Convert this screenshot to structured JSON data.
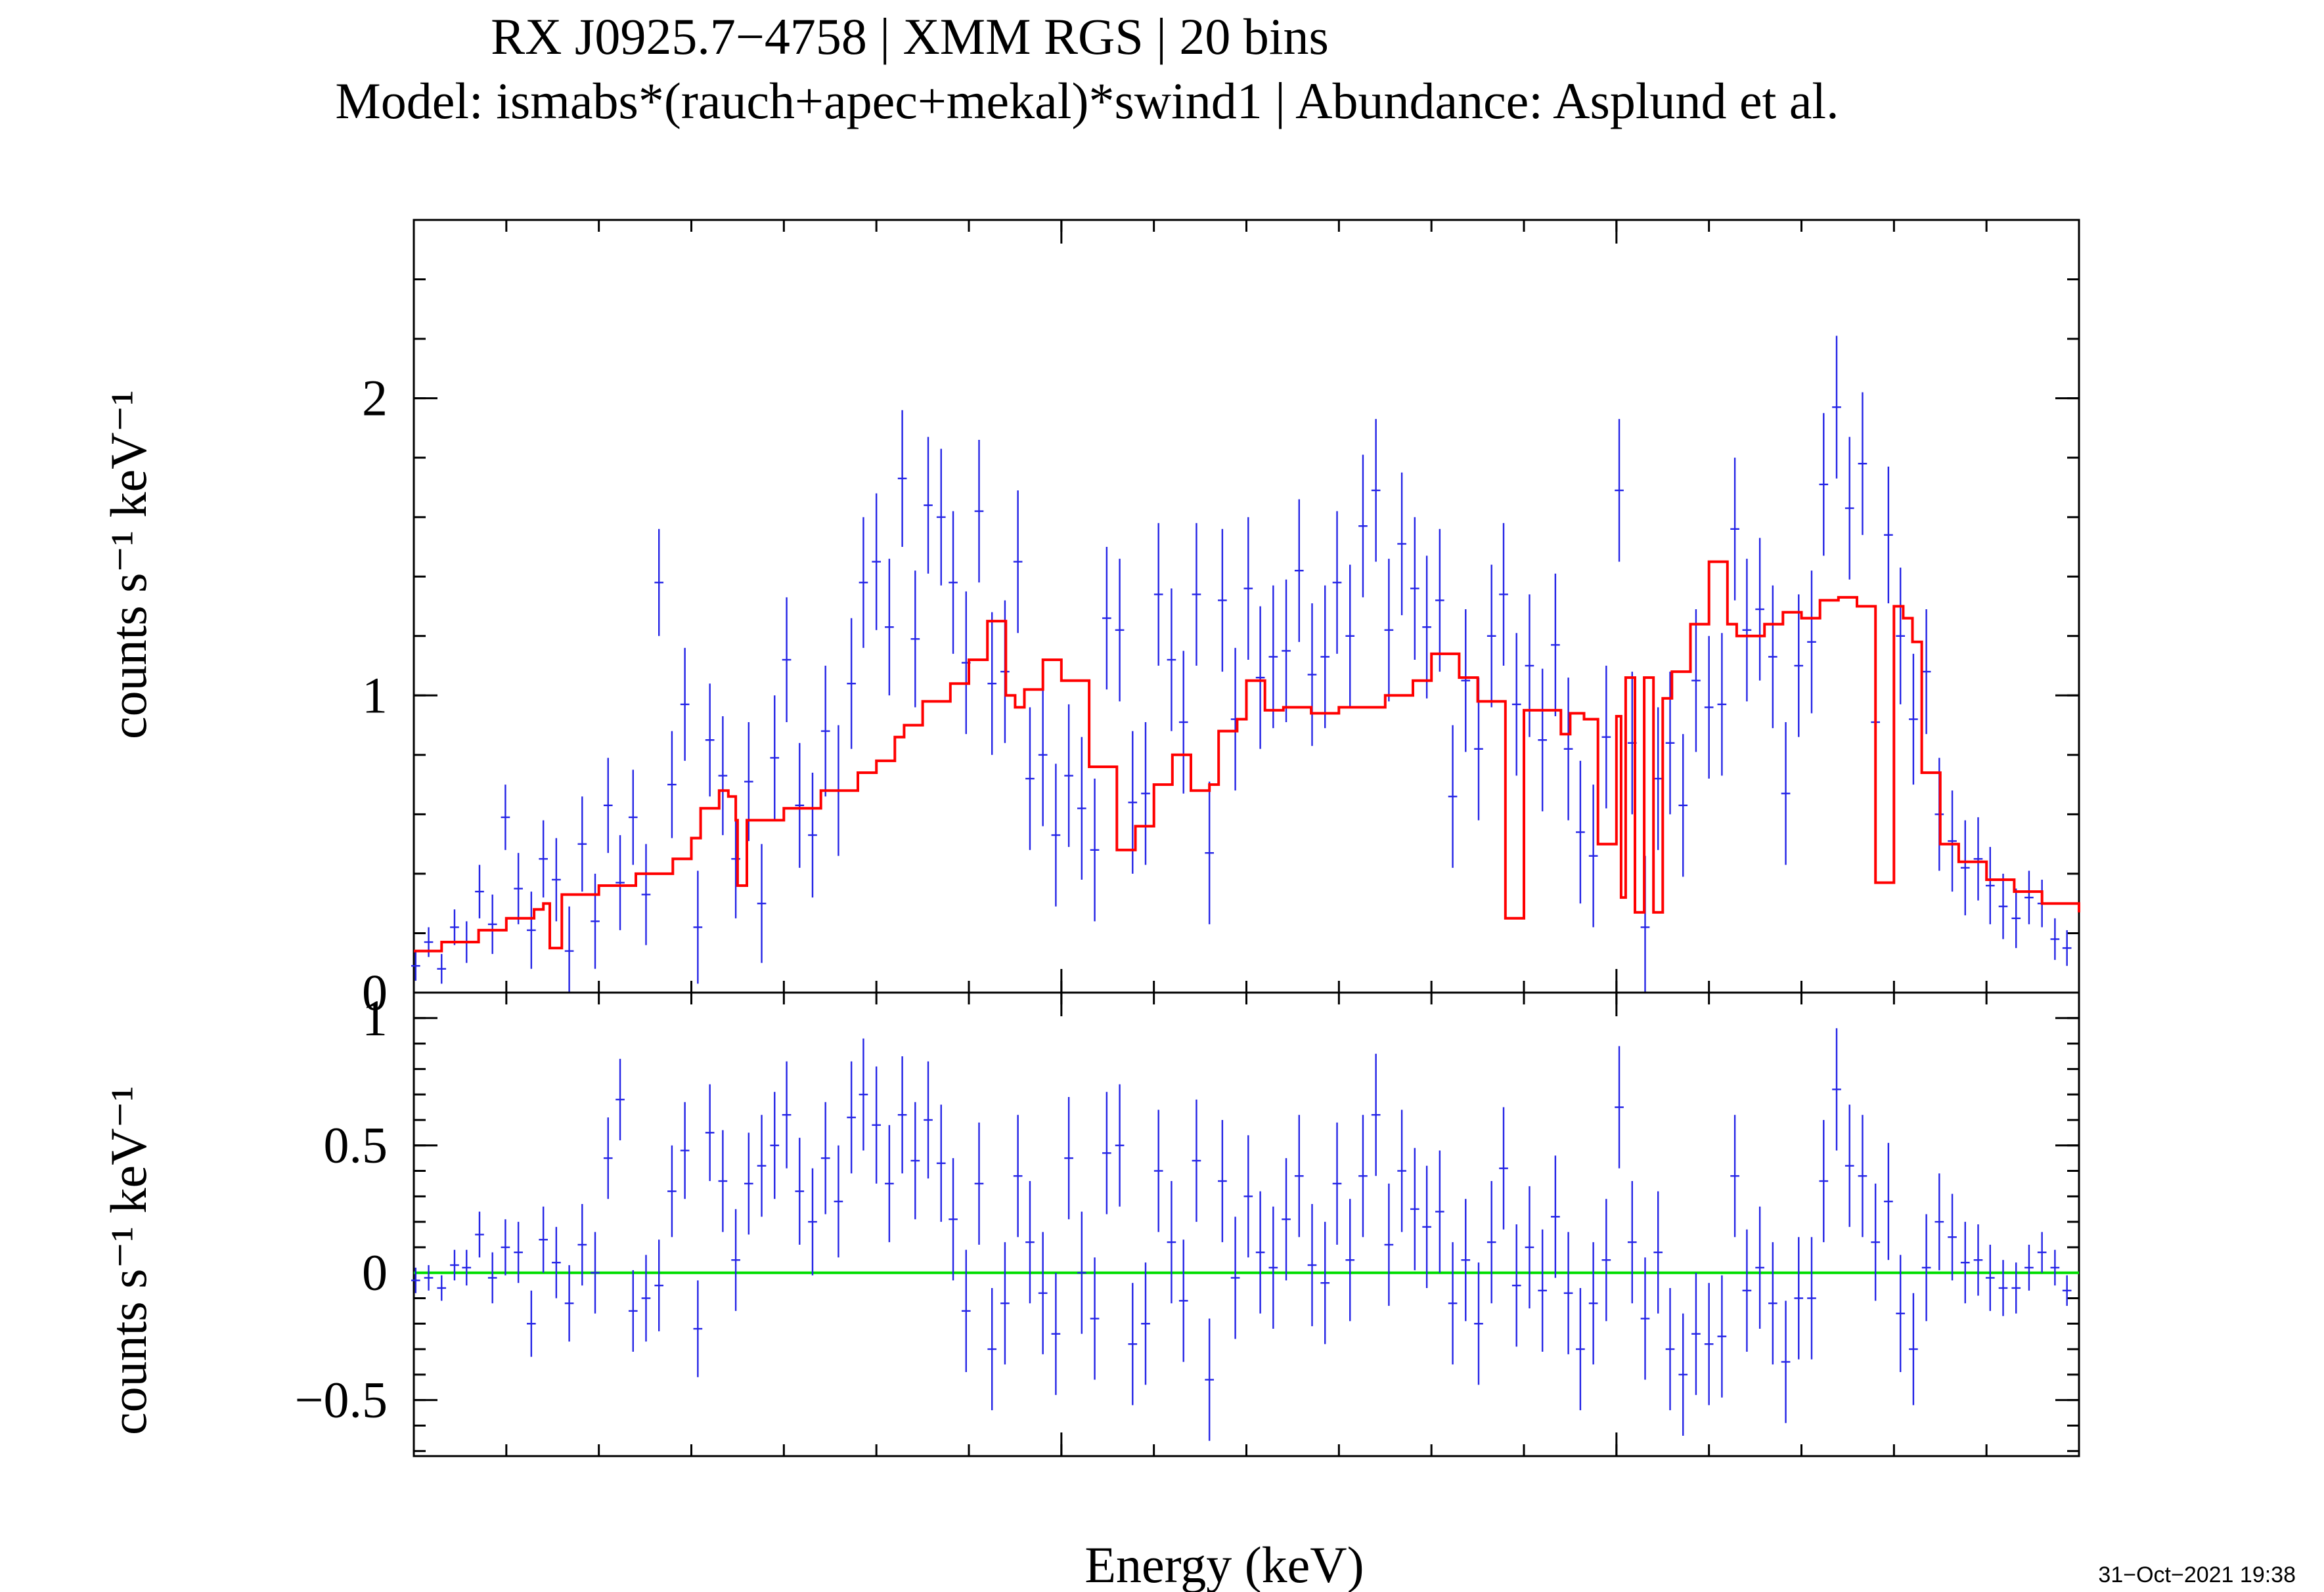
{
  "title": {
    "line1": "RX J0925.7−4758 | XMM RGS | 20 bins",
    "line2": "Model: ismabs*(rauch+apec+mekal)*swind1 | Abundance: Asplund et al."
  },
  "xlabel": "Energy (keV)",
  "timestamp": "31−Oct−2021 19:38",
  "colors": {
    "data": "#2424e6",
    "model": "#ff0000",
    "zero": "#00dd00",
    "frame": "#000000"
  },
  "chart_data": [
    {
      "type": "scatter",
      "panel": "spectrum",
      "ylabel": "counts s⁻¹ keV⁻¹",
      "ylim": [
        0,
        2.6
      ],
      "yticks": [
        {
          "value": 0,
          "label": "0"
        },
        {
          "value": 1,
          "label": "1"
        },
        {
          "value": 2,
          "label": "2"
        }
      ],
      "xlim": [
        0.3,
        2.1
      ],
      "x_ticks_unlabeled": [
        1.0,
        1.6
      ],
      "series": [
        {
          "name": "",
          "kind": "data-with-errors",
          "x": [
            0.302,
            0.316,
            0.33,
            0.344,
            0.357,
            0.371,
            0.385,
            0.399,
            0.413,
            0.427,
            0.44,
            0.454,
            0.468,
            0.482,
            0.496,
            0.51,
            0.523,
            0.537,
            0.551,
            0.565,
            0.579,
            0.593,
            0.607,
            0.62,
            0.634,
            0.648,
            0.662,
            0.676,
            0.69,
            0.703,
            0.717,
            0.731,
            0.745,
            0.759,
            0.773,
            0.786,
            0.8,
            0.814,
            0.828,
            0.842,
            0.856,
            0.87,
            0.883,
            0.897,
            0.911,
            0.925,
            0.939,
            0.953,
            0.966,
            0.98,
            0.994,
            1.008,
            1.022,
            1.036,
            1.049,
            1.063,
            1.077,
            1.091,
            1.105,
            1.119,
            1.132,
            1.146,
            1.16,
            1.174,
            1.188,
            1.202,
            1.215,
            1.229,
            1.243,
            1.257,
            1.271,
            1.285,
            1.298,
            1.312,
            1.326,
            1.34,
            1.354,
            1.368,
            1.382,
            1.395,
            1.409,
            1.423,
            1.437,
            1.451,
            1.465,
            1.478,
            1.492,
            1.506,
            1.52,
            1.534,
            1.548,
            1.561,
            1.575,
            1.589,
            1.603,
            1.617,
            1.631,
            1.645,
            1.658,
            1.672,
            1.686,
            1.7,
            1.714,
            1.728,
            1.741,
            1.755,
            1.769,
            1.783,
            1.797,
            1.811,
            1.824,
            1.838,
            1.852,
            1.866,
            1.88,
            1.894,
            1.907,
            1.921,
            1.935,
            1.949,
            1.963,
            1.977,
            1.991,
            2.004,
            2.018,
            2.032,
            2.046,
            2.06,
            2.074,
            2.087
          ],
          "y": [
            0.09,
            0.17,
            0.08,
            0.22,
            0.17,
            0.34,
            0.23,
            0.59,
            0.35,
            0.21,
            0.45,
            0.38,
            0.14,
            0.5,
            0.24,
            0.63,
            0.37,
            0.59,
            0.33,
            1.38,
            0.7,
            0.97,
            0.22,
            0.85,
            0.73,
            0.45,
            0.71,
            0.3,
            0.79,
            1.12,
            0.63,
            0.53,
            0.88,
            0.68,
            1.04,
            1.38,
            1.45,
            1.23,
            1.73,
            1.19,
            1.64,
            1.6,
            1.38,
            1.11,
            1.62,
            1.04,
            1.08,
            1.45,
            0.72,
            0.8,
            0.53,
            0.73,
            0.62,
            0.48,
            1.26,
            1.22,
            0.64,
            0.67,
            1.34,
            1.12,
            0.91,
            1.34,
            0.47,
            1.32,
            0.92,
            1.36,
            1.06,
            1.13,
            1.15,
            1.42,
            1.07,
            1.13,
            1.38,
            1.2,
            1.57,
            1.69,
            1.22,
            1.51,
            1.36,
            1.23,
            1.32,
            0.66,
            1.05,
            0.82,
            1.2,
            1.34,
            0.97,
            1.1,
            0.85,
            1.17,
            0.82,
            0.54,
            0.46,
            0.86,
            1.69,
            0.84,
            0.22,
            0.72,
            0.84,
            0.63,
            1.05,
            0.96,
            0.97,
            1.56,
            1.22,
            1.29,
            1.13,
            0.67,
            1.1,
            1.18,
            1.71,
            1.97,
            1.63,
            1.78,
            0.91,
            1.54,
            1.2,
            0.92,
            1.08,
            0.6,
            0.51,
            0.42,
            0.45,
            0.36,
            0.29,
            0.25,
            0.32,
            0.3,
            0.18,
            0.15
          ],
          "yerr": [
            0.05,
            0.05,
            0.05,
            0.06,
            0.07,
            0.09,
            0.1,
            0.11,
            0.12,
            0.13,
            0.13,
            0.14,
            0.15,
            0.16,
            0.16,
            0.16,
            0.16,
            0.16,
            0.17,
            0.18,
            0.18,
            0.19,
            0.19,
            0.19,
            0.2,
            0.2,
            0.2,
            0.2,
            0.21,
            0.21,
            0.21,
            0.21,
            0.22,
            0.22,
            0.22,
            0.22,
            0.23,
            0.23,
            0.23,
            0.23,
            0.23,
            0.23,
            0.24,
            0.24,
            0.24,
            0.24,
            0.24,
            0.24,
            0.24,
            0.24,
            0.24,
            0.24,
            0.24,
            0.24,
            0.24,
            0.24,
            0.24,
            0.24,
            0.24,
            0.24,
            0.24,
            0.24,
            0.24,
            0.24,
            0.24,
            0.24,
            0.24,
            0.24,
            0.24,
            0.24,
            0.24,
            0.24,
            0.24,
            0.24,
            0.24,
            0.24,
            0.24,
            0.24,
            0.24,
            0.24,
            0.24,
            0.24,
            0.24,
            0.24,
            0.24,
            0.24,
            0.24,
            0.24,
            0.24,
            0.24,
            0.24,
            0.24,
            0.24,
            0.24,
            0.24,
            0.24,
            0.24,
            0.24,
            0.24,
            0.24,
            0.24,
            0.24,
            0.24,
            0.24,
            0.24,
            0.24,
            0.24,
            0.24,
            0.24,
            0.24,
            0.24,
            0.24,
            0.24,
            0.24,
            0.23,
            0.23,
            0.23,
            0.22,
            0.21,
            0.19,
            0.17,
            0.16,
            0.14,
            0.13,
            0.11,
            0.1,
            0.09,
            0.08,
            0.07,
            0.06
          ],
          "color": "#2424e6"
        },
        {
          "name": "",
          "kind": "model-step",
          "x": [
            0.3,
            0.33,
            0.37,
            0.4,
            0.43,
            0.44,
            0.445,
            0.447,
            0.46,
            0.5,
            0.54,
            0.58,
            0.6,
            0.61,
            0.63,
            0.64,
            0.648,
            0.65,
            0.66,
            0.7,
            0.74,
            0.78,
            0.8,
            0.82,
            0.83,
            0.85,
            0.88,
            0.9,
            0.92,
            0.94,
            0.95,
            0.96,
            0.98,
            1.0,
            1.03,
            1.06,
            1.08,
            1.1,
            1.12,
            1.14,
            1.16,
            1.17,
            1.19,
            1.2,
            1.22,
            1.24,
            1.27,
            1.3,
            1.35,
            1.38,
            1.4,
            1.43,
            1.45,
            1.47,
            1.48,
            1.5,
            1.52,
            1.54,
            1.55,
            1.565,
            1.58,
            1.6,
            1.605,
            1.61,
            1.62,
            1.63,
            1.64,
            1.65,
            1.66,
            1.68,
            1.7,
            1.72,
            1.73,
            1.74,
            1.76,
            1.78,
            1.8,
            1.82,
            1.84,
            1.86,
            1.88,
            1.9,
            1.91,
            1.92,
            1.93,
            1.95,
            1.97,
            2.0,
            2.03,
            2.06,
            2.1
          ],
          "y": [
            0.14,
            0.17,
            0.21,
            0.25,
            0.28,
            0.3,
            0.3,
            0.15,
            0.33,
            0.36,
            0.4,
            0.45,
            0.52,
            0.62,
            0.68,
            0.66,
            0.58,
            0.36,
            0.58,
            0.62,
            0.68,
            0.74,
            0.78,
            0.86,
            0.9,
            0.98,
            1.04,
            1.12,
            1.25,
            1.0,
            0.96,
            1.02,
            1.12,
            1.05,
            0.76,
            0.48,
            0.56,
            0.7,
            0.8,
            0.68,
            0.7,
            0.88,
            0.92,
            1.05,
            0.95,
            0.96,
            0.94,
            0.96,
            1.0,
            1.05,
            1.14,
            1.06,
            0.98,
            0.98,
            0.25,
            0.95,
            0.95,
            0.87,
            0.94,
            0.92,
            0.5,
            0.93,
            0.32,
            1.06,
            0.27,
            1.06,
            0.27,
            0.99,
            1.08,
            1.24,
            1.45,
            1.24,
            1.2,
            1.2,
            1.24,
            1.28,
            1.26,
            1.32,
            1.33,
            1.3,
            0.37,
            1.3,
            1.26,
            1.18,
            0.74,
            0.5,
            0.44,
            0.38,
            0.34,
            0.3,
            0.27
          ],
          "color": "#ff0000"
        }
      ]
    },
    {
      "type": "scatter",
      "panel": "residuals",
      "ylabel": "counts s⁻¹ keV⁻¹",
      "ylim": [
        -0.72,
        1.1
      ],
      "yticks": [
        {
          "value": -0.5,
          "label": "−0.5"
        },
        {
          "value": 0,
          "label": "0"
        },
        {
          "value": 0.5,
          "label": "0.5"
        },
        {
          "value": 1,
          "label": "1"
        }
      ],
      "xlim": [
        0.3,
        2.1
      ],
      "x_ticks_unlabeled": [
        1.0,
        1.6
      ],
      "zero_line": 0,
      "series": [
        {
          "name": "",
          "kind": "residuals-with-errors",
          "x": [
            0.302,
            0.316,
            0.33,
            0.344,
            0.357,
            0.371,
            0.385,
            0.399,
            0.413,
            0.427,
            0.44,
            0.454,
            0.468,
            0.482,
            0.496,
            0.51,
            0.523,
            0.537,
            0.551,
            0.565,
            0.579,
            0.593,
            0.607,
            0.62,
            0.634,
            0.648,
            0.662,
            0.676,
            0.69,
            0.703,
            0.717,
            0.731,
            0.745,
            0.759,
            0.773,
            0.786,
            0.8,
            0.814,
            0.828,
            0.842,
            0.856,
            0.87,
            0.883,
            0.897,
            0.911,
            0.925,
            0.939,
            0.953,
            0.966,
            0.98,
            0.994,
            1.008,
            1.022,
            1.036,
            1.049,
            1.063,
            1.077,
            1.091,
            1.105,
            1.119,
            1.132,
            1.146,
            1.16,
            1.174,
            1.188,
            1.202,
            1.215,
            1.229,
            1.243,
            1.257,
            1.271,
            1.285,
            1.298,
            1.312,
            1.326,
            1.34,
            1.354,
            1.368,
            1.382,
            1.395,
            1.409,
            1.423,
            1.437,
            1.451,
            1.465,
            1.478,
            1.492,
            1.506,
            1.52,
            1.534,
            1.548,
            1.561,
            1.575,
            1.589,
            1.603,
            1.617,
            1.631,
            1.645,
            1.658,
            1.672,
            1.686,
            1.7,
            1.714,
            1.728,
            1.741,
            1.755,
            1.769,
            1.783,
            1.797,
            1.811,
            1.824,
            1.838,
            1.852,
            1.866,
            1.88,
            1.894,
            1.907,
            1.921,
            1.935,
            1.949,
            1.963,
            1.977,
            1.991,
            2.004,
            2.018,
            2.032,
            2.046,
            2.06,
            2.074,
            2.087
          ],
          "y": [
            -0.03,
            -0.02,
            -0.06,
            0.03,
            0.02,
            0.15,
            -0.02,
            0.1,
            0.08,
            -0.2,
            0.13,
            0.04,
            -0.12,
            0.11,
            0.0,
            0.45,
            0.68,
            -0.15,
            -0.1,
            -0.05,
            0.32,
            0.48,
            -0.22,
            0.55,
            0.36,
            0.05,
            0.35,
            0.42,
            0.5,
            0.62,
            0.32,
            0.2,
            0.45,
            0.28,
            0.61,
            0.7,
            0.58,
            0.35,
            0.62,
            0.44,
            0.6,
            0.43,
            0.21,
            -0.15,
            0.35,
            -0.3,
            -0.12,
            0.38,
            0.12,
            -0.08,
            -0.24,
            0.45,
            0.0,
            -0.18,
            0.47,
            0.5,
            -0.28,
            -0.2,
            0.4,
            0.12,
            -0.11,
            0.44,
            -0.42,
            0.36,
            -0.02,
            0.3,
            0.08,
            0.02,
            0.21,
            0.38,
            0.03,
            -0.04,
            0.35,
            0.05,
            0.38,
            0.62,
            0.11,
            0.4,
            0.25,
            0.18,
            0.24,
            -0.12,
            0.05,
            -0.2,
            0.12,
            0.41,
            -0.05,
            0.1,
            -0.07,
            0.22,
            -0.08,
            -0.3,
            -0.12,
            0.05,
            0.65,
            0.12,
            -0.18,
            0.08,
            -0.3,
            -0.4,
            -0.24,
            -0.28,
            -0.25,
            0.38,
            -0.07,
            0.02,
            -0.12,
            -0.35,
            -0.1,
            -0.1,
            0.36,
            0.72,
            0.42,
            0.38,
            0.12,
            0.28,
            -0.16,
            -0.3,
            0.02,
            0.2,
            0.14,
            0.04,
            0.05,
            -0.02,
            -0.06,
            -0.06,
            0.02,
            0.08,
            0.02,
            -0.07
          ],
          "yerr": [
            0.05,
            0.05,
            0.05,
            0.06,
            0.07,
            0.09,
            0.1,
            0.11,
            0.12,
            0.13,
            0.13,
            0.14,
            0.15,
            0.16,
            0.16,
            0.16,
            0.16,
            0.16,
            0.17,
            0.18,
            0.18,
            0.19,
            0.19,
            0.19,
            0.2,
            0.2,
            0.2,
            0.2,
            0.21,
            0.21,
            0.21,
            0.21,
            0.22,
            0.22,
            0.22,
            0.22,
            0.23,
            0.23,
            0.23,
            0.23,
            0.23,
            0.23,
            0.24,
            0.24,
            0.24,
            0.24,
            0.24,
            0.24,
            0.24,
            0.24,
            0.24,
            0.24,
            0.24,
            0.24,
            0.24,
            0.24,
            0.24,
            0.24,
            0.24,
            0.24,
            0.24,
            0.24,
            0.24,
            0.24,
            0.24,
            0.24,
            0.24,
            0.24,
            0.24,
            0.24,
            0.24,
            0.24,
            0.24,
            0.24,
            0.24,
            0.24,
            0.24,
            0.24,
            0.24,
            0.24,
            0.24,
            0.24,
            0.24,
            0.24,
            0.24,
            0.24,
            0.24,
            0.24,
            0.24,
            0.24,
            0.24,
            0.24,
            0.24,
            0.24,
            0.24,
            0.24,
            0.24,
            0.24,
            0.24,
            0.24,
            0.24,
            0.24,
            0.24,
            0.24,
            0.24,
            0.24,
            0.24,
            0.24,
            0.24,
            0.24,
            0.24,
            0.24,
            0.24,
            0.24,
            0.23,
            0.23,
            0.23,
            0.22,
            0.21,
            0.19,
            0.17,
            0.16,
            0.14,
            0.13,
            0.11,
            0.1,
            0.09,
            0.08,
            0.07,
            0.06
          ],
          "color": "#2424e6"
        }
      ]
    }
  ]
}
